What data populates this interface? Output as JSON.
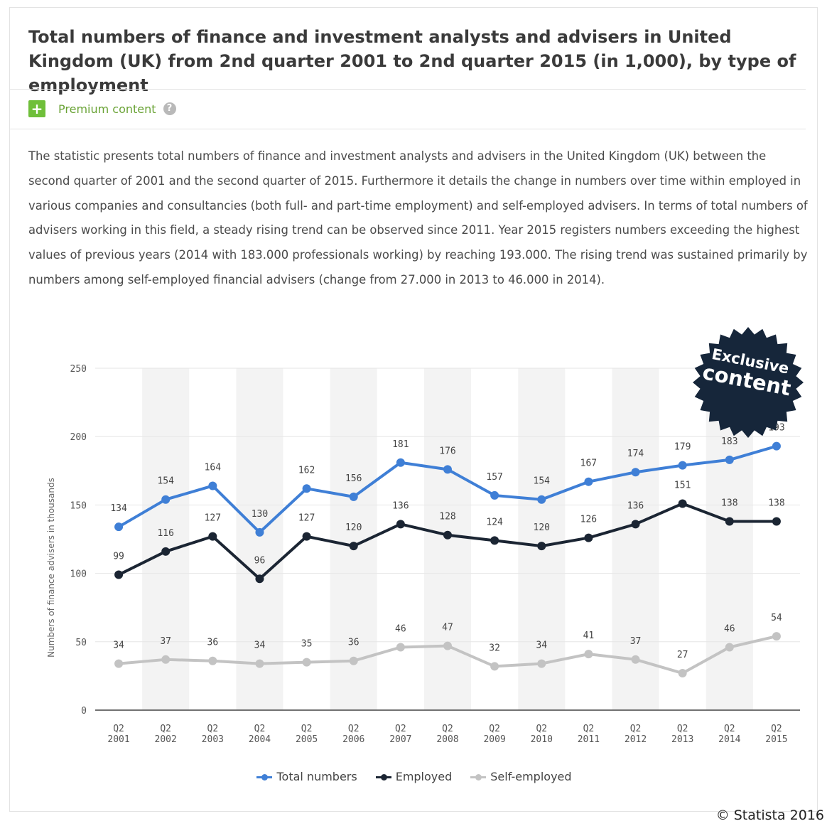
{
  "header": {
    "title": "Total numbers of finance and investment analysts and advisers in United Kingdom (UK) from 2nd quarter 2001 to 2nd quarter 2015 (in 1,000), by type of employment",
    "premium_label": "Premium content",
    "plus_symbol": "+",
    "help_symbol": "?"
  },
  "description": "The statistic presents total numbers of finance and investment analysts and advisers in the United Kingdom (UK) between the second quarter of 2001 and the second quarter of 2015. Furthermore it details the change in numbers over time within employed in various companies and consultancies (both full- and part-time employment) and self-employed advisers. In terms of total numbers of advisers working in this field, a steady rising trend can be observed since 2011. Year 2015 registers numbers exceeding the highest values of previous years (2014 with 183.000 professionals working) by reaching 193.000. The rising trend was sustained primarily by numbers among self-employed financial advisers (change from 27.000 in 2013 to 46.000 in 2014).",
  "badge": {
    "line1": "Exclusive",
    "line2": "content"
  },
  "copyright": "© Statista 2016",
  "colors": {
    "total": "#3f7fd6",
    "employed": "#1b2533",
    "self": "#c3c3c3",
    "band": "#f3f3f3",
    "grid": "#e6e6e6",
    "badge": "#16263a"
  },
  "chart_data": {
    "type": "line",
    "ylabel": "Numbers of finance advisers in thousands",
    "xlabel": "",
    "ylim": [
      0,
      250
    ],
    "yticks": [
      0,
      50,
      100,
      150,
      200,
      250
    ],
    "grid": true,
    "legend_position": "bottom",
    "categories": [
      [
        "Q2",
        "2001"
      ],
      [
        "Q2",
        "2002"
      ],
      [
        "Q2",
        "2003"
      ],
      [
        "Q2",
        "2004"
      ],
      [
        "Q2",
        "2005"
      ],
      [
        "Q2",
        "2006"
      ],
      [
        "Q2",
        "2007"
      ],
      [
        "Q2",
        "2008"
      ],
      [
        "Q2",
        "2009"
      ],
      [
        "Q2",
        "2010"
      ],
      [
        "Q2",
        "2011"
      ],
      [
        "Q2",
        "2012"
      ],
      [
        "Q2",
        "2013"
      ],
      [
        "Q2",
        "2014"
      ],
      [
        "Q2",
        "2015"
      ]
    ],
    "series": [
      {
        "name": "Total numbers",
        "color": "#3f7fd6",
        "values": [
          134,
          154,
          164,
          130,
          162,
          156,
          181,
          176,
          157,
          154,
          167,
          174,
          179,
          183,
          193
        ]
      },
      {
        "name": "Employed",
        "color": "#1b2533",
        "values": [
          99,
          116,
          127,
          96,
          127,
          120,
          136,
          128,
          124,
          120,
          126,
          136,
          151,
          138,
          138
        ]
      },
      {
        "name": "Self-employed",
        "color": "#c3c3c3",
        "values": [
          34,
          37,
          36,
          34,
          35,
          36,
          46,
          47,
          32,
          34,
          41,
          37,
          27,
          46,
          54
        ]
      }
    ]
  }
}
